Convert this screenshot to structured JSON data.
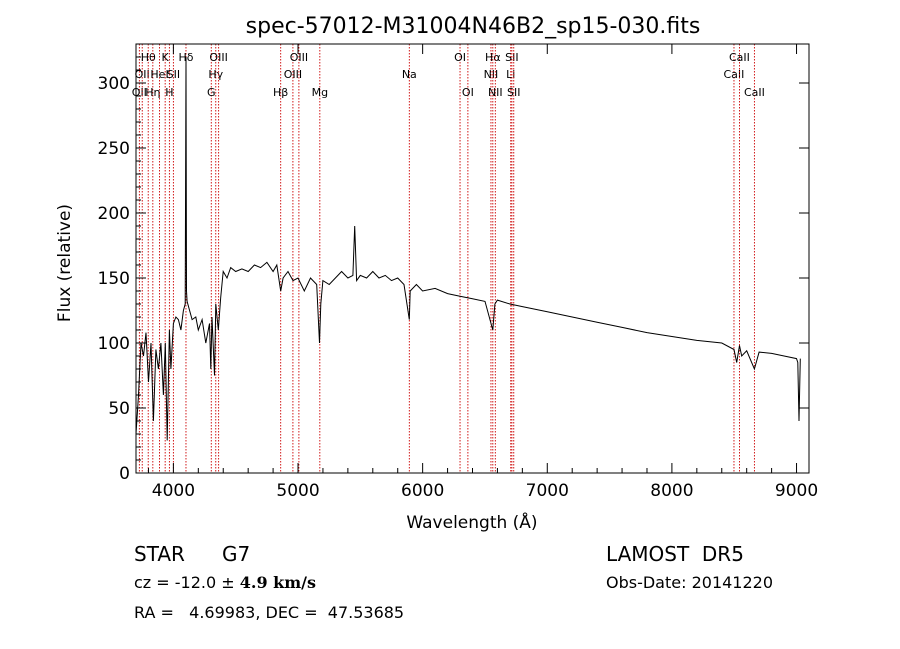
{
  "chart_data": {
    "type": "line",
    "title": "spec-57012-M31004N46B2_sp15-030.fits",
    "xlabel": "Wavelength (Å)",
    "ylabel": "Flux (relative)",
    "xlim": [
      3700,
      9100
    ],
    "ylim": [
      0,
      330
    ],
    "xticks": [
      4000,
      5000,
      6000,
      7000,
      8000,
      9000
    ],
    "yticks": [
      0,
      50,
      100,
      150,
      200,
      250,
      300
    ],
    "line_color": "#000000",
    "marker_color": "#cc0000",
    "grid": false,
    "series": [
      {
        "x": [
          3700,
          3720,
          3740,
          3760,
          3780,
          3800,
          3820,
          3840,
          3860,
          3880,
          3900,
          3920,
          3935,
          3950,
          3968,
          3980,
          4000,
          4020,
          4040,
          4060,
          4080,
          4095,
          4101,
          4105,
          4110,
          4130,
          4150,
          4180,
          4200,
          4230,
          4260,
          4290,
          4300,
          4310,
          4330,
          4340,
          4360,
          4380,
          4400,
          4430,
          4460,
          4500,
          4550,
          4600,
          4650,
          4700,
          4750,
          4800,
          4830,
          4861,
          4880,
          4920,
          4960,
          5000,
          5050,
          5100,
          5150,
          5172,
          5183,
          5200,
          5250,
          5300,
          5350,
          5400,
          5440,
          5455,
          5470,
          5500,
          5550,
          5600,
          5650,
          5700,
          5750,
          5800,
          5850,
          5893,
          5900,
          5950,
          6000,
          6100,
          6200,
          6300,
          6400,
          6500,
          6563,
          6580,
          6600,
          6700,
          6800,
          7000,
          7200,
          7400,
          7600,
          7800,
          8000,
          8200,
          8400,
          8498,
          8520,
          8542,
          8560,
          8600,
          8662,
          8700,
          8800,
          8900,
          9000,
          9010,
          9020,
          9030
        ],
        "y": [
          30,
          60,
          100,
          90,
          108,
          70,
          100,
          40,
          95,
          80,
          100,
          60,
          100,
          25,
          110,
          80,
          115,
          120,
          118,
          110,
          125,
          130,
          320,
          140,
          132,
          125,
          118,
          120,
          110,
          118,
          100,
          115,
          80,
          120,
          75,
          130,
          110,
          135,
          155,
          150,
          158,
          155,
          157,
          155,
          160,
          158,
          162,
          155,
          160,
          140,
          150,
          155,
          148,
          150,
          140,
          150,
          145,
          100,
          130,
          148,
          145,
          150,
          155,
          150,
          152,
          190,
          148,
          152,
          150,
          155,
          150,
          152,
          148,
          150,
          145,
          118,
          140,
          145,
          140,
          142,
          138,
          136,
          134,
          132,
          110,
          130,
          133,
          130,
          128,
          124,
          120,
          116,
          112,
          108,
          105,
          102,
          100,
          95,
          85,
          98,
          90,
          94,
          80,
          93,
          92,
          90,
          88,
          85,
          40,
          88
        ]
      }
    ],
    "line_markers": [
      {
        "wl": 3727,
        "label": "OII",
        "row": 2
      },
      {
        "wl": 3750,
        "label": "OII",
        "row": 1
      },
      {
        "wl": 3798,
        "label": "Hθ",
        "row": 0
      },
      {
        "wl": 3835,
        "label": "Hη",
        "row": 2
      },
      {
        "wl": 3889,
        "label": "HeI",
        "row": 1
      },
      {
        "wl": 3934,
        "label": "K",
        "row": 0
      },
      {
        "wl": 3968,
        "label": "H",
        "row": 2
      },
      {
        "wl": 4000,
        "label": "SII",
        "row": 1
      },
      {
        "wl": 4101,
        "label": "Hδ",
        "row": 0
      },
      {
        "wl": 4304,
        "label": "G",
        "row": 2
      },
      {
        "wl": 4340,
        "label": "Hγ",
        "row": 1
      },
      {
        "wl": 4363,
        "label": "OIII",
        "row": 0
      },
      {
        "wl": 4861,
        "label": "Hβ",
        "row": 2
      },
      {
        "wl": 4959,
        "label": "OIII",
        "row": 1
      },
      {
        "wl": 5007,
        "label": "OIII",
        "row": 0
      },
      {
        "wl": 5175,
        "label": "Mg",
        "row": 2
      },
      {
        "wl": 5893,
        "label": "Na",
        "row": 1
      },
      {
        "wl": 6300,
        "label": "OI",
        "row": 0
      },
      {
        "wl": 6363,
        "label": "OI",
        "row": 2
      },
      {
        "wl": 6548,
        "label": "NII",
        "row": 1
      },
      {
        "wl": 6563,
        "label": "Hα",
        "row": 0
      },
      {
        "wl": 6583,
        "label": "NII",
        "row": 2
      },
      {
        "wl": 6707,
        "label": "Li",
        "row": 1
      },
      {
        "wl": 6716,
        "label": "SII",
        "row": 0
      },
      {
        "wl": 6731,
        "label": "SII",
        "row": 2
      },
      {
        "wl": 8498,
        "label": "CaII",
        "row": 1
      },
      {
        "wl": 8542,
        "label": "CaII",
        "row": 0
      },
      {
        "wl": 8662,
        "label": "CaII",
        "row": 2
      }
    ]
  },
  "info": {
    "object_type": "STAR",
    "subclass": "G7",
    "survey": "LAMOST  DR5",
    "cz_prefix": "cz = -12.0 ± ",
    "cz_error": "4.9 km/s",
    "obs_date": "Obs-Date: 20141220",
    "coords": "RA =   4.69983, DEC =  47.53685"
  }
}
